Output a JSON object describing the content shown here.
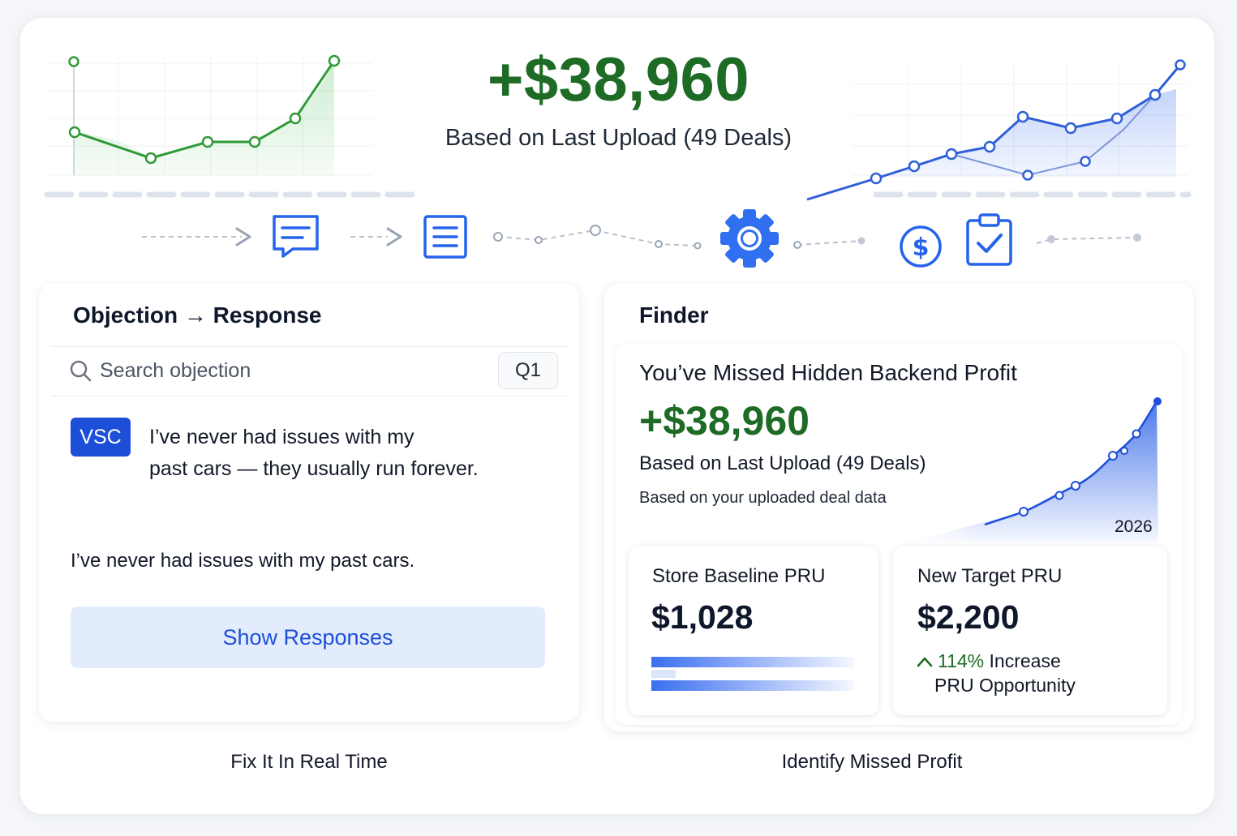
{
  "hero": {
    "amount": "+$38,960",
    "subtitle": "Based on Last Upload (49 Deals)"
  },
  "flow_icons": [
    "arrow-right-icon",
    "message-icon",
    "arrow-right-icon",
    "document-icon",
    "gear-icon",
    "dollar-icon",
    "clipboard-check-icon"
  ],
  "objection_card": {
    "title": "Objection → Response",
    "search_placeholder": "Search objection",
    "quarter": "Q1",
    "badge": "VSC",
    "quote_line1": "I’ve never had issues with my",
    "quote_line2": "past cars — they usually run forever.",
    "objection_text": "I’ve never had issues with my past cars.",
    "button_label": "Show Responses",
    "caption": "Fix It In Real Time"
  },
  "finder_card": {
    "title": "Finder",
    "headline": "You’ve Missed Hidden Backend Profit",
    "amount": "+$38,960",
    "subtitle": "Based on Last Upload (49 Deals)",
    "note": "Based on your uploaded deal data",
    "year": "2026",
    "baseline": {
      "label": "Store Baseline PRU",
      "value": "$1,028"
    },
    "target": {
      "label": "New Target PRU",
      "value": "$2,200",
      "increase_pct": "114%",
      "increase_word": "Increase",
      "opportunity": "PRU Opportunity"
    },
    "caption": "Identify Missed Profit"
  },
  "colors": {
    "profit_green": "#1d6b25",
    "accent_blue": "#1d4ed8",
    "button_bg": "#e3ecfd"
  }
}
